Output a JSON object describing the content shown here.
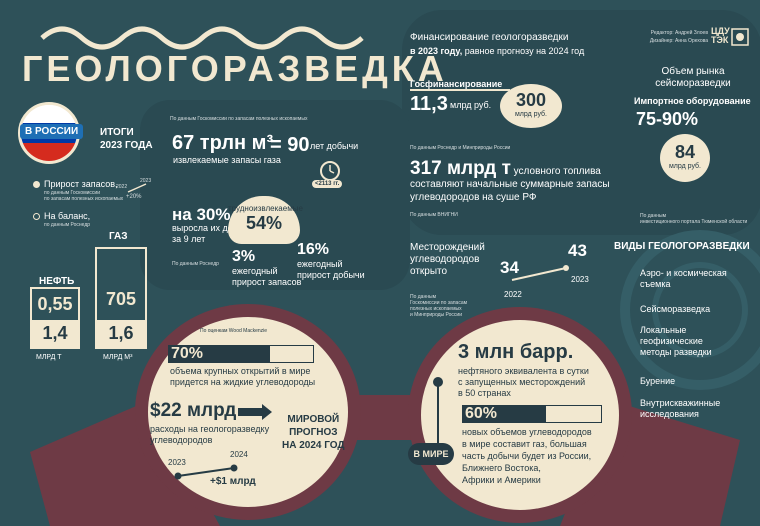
{
  "title": "ГЕОЛОГОРАЗВЕДКА",
  "credits": {
    "editor": "Редактор: Андрей Злоев",
    "designer": "Дизайнер: Анна Орехова"
  },
  "logo": {
    "line1": "ЦДУ",
    "line2": "ТЭК"
  },
  "russia": {
    "badge": "В РОССИИ",
    "results_label": "ИТОГИ\n2023 ГОДА",
    "legend_increment": "Прирост запасов,",
    "legend_increment_source": "по данным Госкомиссии\nпо запасам полезных ископаемых",
    "legend_balance": "На баланс,",
    "legend_balance_source": "по данным Роснедр",
    "mini_chart": {
      "y2022": "2022",
      "y2023": "2023",
      "delta": "+20%"
    },
    "oil_label": "НЕФТЬ",
    "gas_label": "ГАЗ",
    "oil_increment": "0,55",
    "oil_balance": "1,4",
    "gas_increment": "705",
    "gas_balance": "1,6",
    "oil_unit": "МЛРД Т",
    "gas_unit": "МЛРД М³",
    "gas_reserves_source": "По данным Госкомиссии по запасам полезных ископаемых",
    "gas_reserves_value": "67 трлн м³",
    "gas_reserves_equals": "= 90",
    "gas_reserves_years": "лет добычи",
    "gas_reserves_desc": "извлекаемые запасы газа",
    "clock_label": "<2113 гг.",
    "share_hard": "на 30%",
    "share_hard_desc": "выросла их доля\nза 9 лет",
    "hard_title": "трудноизвлекаемые",
    "hard_value": "54%",
    "growth_value": "3%",
    "growth_desc": "ежегодный\nприрост запасов",
    "production_value": "16%",
    "production_desc": "ежегодный\nприрост добычи",
    "rosnedra_source": "По данным Роснедр"
  },
  "funding": {
    "title": "Финансирование геологоразведки",
    "subtitle_bold": "в 2023 году,",
    "subtitle_rest": "равное прогнозу на 2024 год",
    "state_label": "Госфинансирование",
    "state_value": "11,3",
    "state_unit": "млрд руб.",
    "total_value": "300",
    "total_unit": "млрд руб.",
    "source": "По данным Роснедр и Минприроды России"
  },
  "market": {
    "title": "Объем рынка\nсейсморазведки",
    "import_label": "Импортное оборудование",
    "import_value": "75-90%",
    "size_value": "84",
    "size_unit": "млрд руб.",
    "source": "По данным\nинвестиционного портала Тюменской области"
  },
  "fuel": {
    "value": "317 млрд т",
    "desc_first": "условного топлива",
    "desc_rest": "составляют начальные суммарные запасы\nуглеводородов на суше РФ",
    "source": "По данным ВНИГНИ"
  },
  "fields": {
    "title": "Месторождений\nуглеводородов\nоткрыто",
    "v2022": "34",
    "y2022": "2022",
    "v2023": "43",
    "y2023": "2023",
    "source": "По данным\nГоскомиссии по запасам\nполезных ископаемых\nи Минприроды России"
  },
  "types": {
    "title": "ВИДЫ ГЕОЛОГОРАЗВЕДКИ",
    "items": [
      "Аэро- и космическая\nсъемка",
      "Сейсморазведка",
      "Локальные\nгеофизические\nметоды разведки",
      "Бурение",
      "Внутрискважинные\nисследования"
    ]
  },
  "world_forecast": {
    "source": "По оценкам Wood Mackenzie",
    "pct": "70%",
    "pct_desc": "объема крупных открытий в мире\nпридется на жидкие углеводороды",
    "spend_value": "$22 млрд",
    "spend_desc": "расходы на геологоразведку\nуглеводородов",
    "y2023": "2023",
    "y2024": "2024",
    "delta": "+$1 млрд",
    "forecast_label": "МИРОВОЙ\nПРОГНОЗ\nНА 2024 ГОД",
    "progress_70": 0.7
  },
  "world": {
    "badge": "В МИРЕ",
    "oil_value": "3 млн барр.",
    "oil_desc": "нефтяного эквивалента в сутки\nс запущенных месторождений\nв 50 странах",
    "gas_pct": "60%",
    "gas_desc": "новых объемов углеводородов\nв мире составит газ, большая\nчасть добычи будет из России,\nБлижнего Востока,\nАфрики и Америки",
    "progress_60": 0.6
  },
  "colors": {
    "background": "#2e5159",
    "cream": "#f2e8d0",
    "dark": "#263b44",
    "maroon": "#7a3b46",
    "flag_red": "#d52b1e",
    "flag_blue": "#0039a6"
  }
}
